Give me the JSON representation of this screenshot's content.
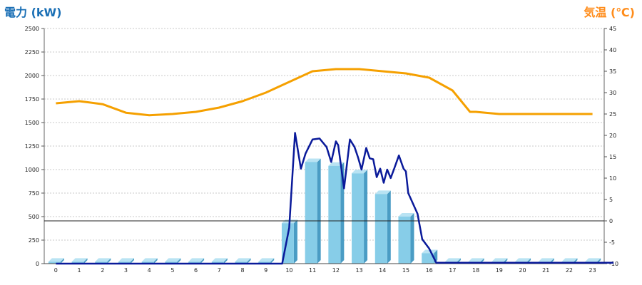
{
  "chart_data": {
    "type": "bar+line",
    "left_axis_title": "電力 (kW)",
    "right_axis_title": "気温 (℃)",
    "colors": {
      "left_title": "#1a6fb5",
      "right_title": "#ff8c1a",
      "bar": "#87cde8",
      "bar_side": "#4a9cc4",
      "bar_top": "#b9e3f3",
      "power_line": "#0a1a9a",
      "temperature_line": "#f5a000",
      "grid": "#c8c8c8"
    },
    "left_axis": {
      "min": 0,
      "max": 2500,
      "ticks": [
        "0",
        "250",
        "500",
        "750",
        "1000",
        "1250",
        "1500",
        "1750",
        "2000",
        "2250",
        "2500"
      ]
    },
    "right_axis": {
      "min": -10,
      "max": 45,
      "ticks": [
        "-10",
        "-5",
        "0",
        "5",
        "10",
        "15",
        "20",
        "25",
        "30",
        "35",
        "40",
        "45"
      ]
    },
    "categories": [
      "0",
      "1",
      "2",
      "3",
      "4",
      "5",
      "6",
      "7",
      "8",
      "9",
      "10",
      "11",
      "12",
      "13",
      "14",
      "15",
      "16",
      "17",
      "18",
      "19",
      "20",
      "21",
      "22",
      "23"
    ],
    "bars": [
      20,
      20,
      20,
      20,
      20,
      20,
      20,
      20,
      20,
      20,
      430,
      1080,
      1040,
      960,
      740,
      500,
      110,
      20,
      20,
      20,
      20,
      20,
      20,
      20
    ],
    "power_line": {
      "x": [
        0,
        9,
        9.7,
        10.0,
        10.25,
        10.5,
        10.7,
        11,
        11.3,
        11.6,
        11.8,
        12.0,
        12.1,
        12.35,
        12.6,
        12.8,
        12.95,
        13.1,
        13.3,
        13.45,
        13.6,
        13.75,
        13.9,
        14.05,
        14.2,
        14.35,
        14.5,
        14.7,
        14.9,
        15.0,
        15.1,
        15.3,
        15.5,
        15.7,
        16.0,
        16.3,
        23.9
      ],
      "y": [
        0,
        0,
        0,
        380,
        1390,
        1010,
        1170,
        1320,
        1330,
        1240,
        1080,
        1300,
        1260,
        800,
        1320,
        1240,
        1130,
        1000,
        1230,
        1120,
        1110,
        920,
        1010,
        860,
        1000,
        910,
        1010,
        1150,
        1010,
        980,
        750,
        640,
        530,
        260,
        160,
        10,
        10
      ]
    },
    "temperature_line": {
      "x": [
        0,
        1,
        2,
        3,
        4,
        5,
        6,
        7,
        8,
        9,
        10,
        11,
        12,
        13,
        14,
        15,
        16,
        17,
        17.75,
        18,
        19,
        20,
        21,
        22,
        23
      ],
      "y": [
        27.5,
        28,
        27.3,
        25.3,
        24.7,
        25,
        25.5,
        26.5,
        28,
        30,
        32.5,
        35,
        35.5,
        35.5,
        35,
        34.5,
        33.5,
        30.5,
        25.5,
        25.5,
        25,
        25,
        25,
        25,
        25
      ]
    }
  }
}
